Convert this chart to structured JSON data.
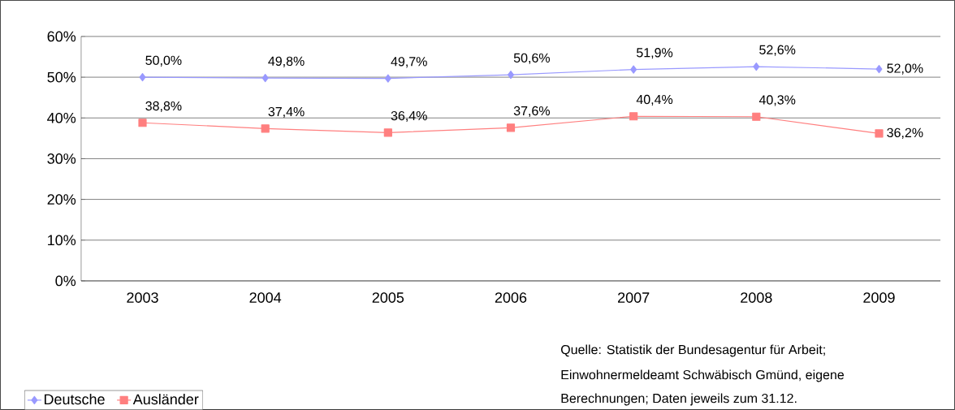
{
  "chart_data": {
    "type": "line",
    "categories": [
      "2003",
      "2004",
      "2005",
      "2006",
      "2007",
      "2008",
      "2009"
    ],
    "series": [
      {
        "name": "Deutsche",
        "color": "#9999ff",
        "marker": "diamond",
        "values": [
          50.0,
          49.8,
          49.7,
          50.6,
          51.9,
          52.6,
          52.0
        ],
        "value_labels": [
          "50,0%",
          "49,8%",
          "49,7%",
          "50,6%",
          "51,9%",
          "52,6%",
          "52,0%"
        ]
      },
      {
        "name": "Ausländer",
        "color": "#ff7f7f",
        "marker": "square",
        "values": [
          38.8,
          37.4,
          36.4,
          37.6,
          40.4,
          40.3,
          36.2
        ],
        "value_labels": [
          "38,8%",
          "37,4%",
          "36,4%",
          "37,6%",
          "40,4%",
          "40,3%",
          "36,2%"
        ]
      }
    ],
    "ylim": [
      0,
      60
    ],
    "yticks": [
      {
        "value": 0,
        "label": "0%"
      },
      {
        "value": 10,
        "label": "10%"
      },
      {
        "value": 20,
        "label": "20%"
      },
      {
        "value": 30,
        "label": "30%"
      },
      {
        "value": 40,
        "label": "40%"
      },
      {
        "value": 50,
        "label": "50%"
      },
      {
        "value": 60,
        "label": "60%"
      }
    ],
    "grid": "y",
    "legend": "bottom left",
    "annotations": [
      "Quelle: Statistik der Bundesagentur für Arbeit;",
      "Einwohnermeldeamt Schwäbisch Gmünd, eigene",
      "Berechnungen; Daten jeweils zum 31.12."
    ]
  }
}
